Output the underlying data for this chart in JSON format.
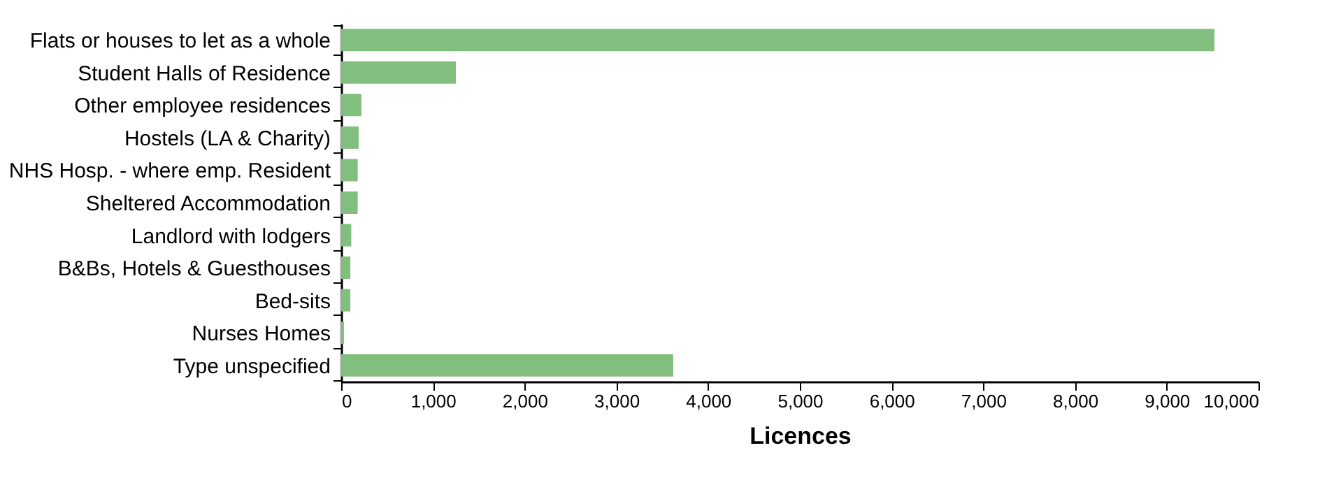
{
  "chart_data": {
    "type": "bar",
    "orientation": "horizontal",
    "xlabel": "Licences",
    "categories": [
      "Flats or houses to let as a whole",
      "Student Halls of Residence",
      "Other employee residences",
      "Hostels (LA & Charity)",
      "NHS Hosp. - where emp. Resident",
      "Sheltered Accommodation",
      "Landlord with lodgers",
      "B&Bs, Hotels & Guesthouses",
      "Bed-sits",
      "Nurses Homes",
      "Type unspecified"
    ],
    "values": [
      9520,
      1250,
      220,
      190,
      180,
      180,
      110,
      100,
      100,
      30,
      3620
    ],
    "color": "#82bf7f",
    "xlim": [
      0,
      10000
    ],
    "xticks": [
      {
        "value": 0,
        "label": "0"
      },
      {
        "value": 1000,
        "label": "1,000"
      },
      {
        "value": 2000,
        "label": "2,000"
      },
      {
        "value": 3000,
        "label": "3,000"
      },
      {
        "value": 4000,
        "label": "4,000"
      },
      {
        "value": 5000,
        "label": "5,000"
      },
      {
        "value": 6000,
        "label": "6,000"
      },
      {
        "value": 7000,
        "label": "7,000"
      },
      {
        "value": 8000,
        "label": "8,000"
      },
      {
        "value": 9000,
        "label": "9,000"
      },
      {
        "value": 10000,
        "label": "10,000"
      }
    ],
    "grid": false
  }
}
